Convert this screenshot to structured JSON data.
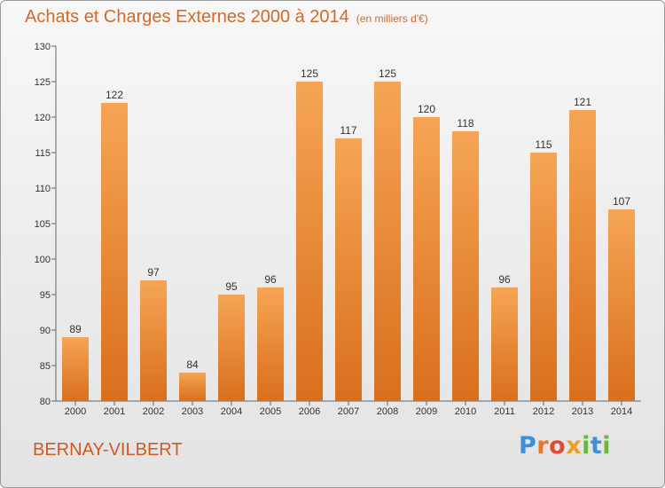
{
  "header": {
    "title": "Achats et Charges Externes 2000 à 2014",
    "unit": "(en milliers d'€)"
  },
  "commune": "BERNAY-VILBERT",
  "logo": {
    "text": [
      "P",
      "r",
      "o",
      "x",
      "i",
      "t",
      "i"
    ]
  },
  "chart_data": {
    "type": "bar",
    "title": "Achats et Charges Externes 2000 à 2014",
    "subtitle": "(en milliers d'€)",
    "xlabel": "",
    "ylabel": "",
    "categories": [
      "2000",
      "2001",
      "2002",
      "2003",
      "2004",
      "2005",
      "2006",
      "2007",
      "2008",
      "2009",
      "2010",
      "2011",
      "2012",
      "2013",
      "2014"
    ],
    "values": [
      89,
      122,
      97,
      84,
      95,
      96,
      125,
      117,
      125,
      120,
      118,
      96,
      115,
      121,
      107
    ],
    "ylim": [
      80,
      130
    ],
    "yticks": [
      80,
      85,
      90,
      95,
      100,
      105,
      110,
      115,
      120,
      125,
      130
    ],
    "grid": false,
    "bar_color_top": "#f5a555",
    "bar_color_bottom": "#d96f1c"
  }
}
